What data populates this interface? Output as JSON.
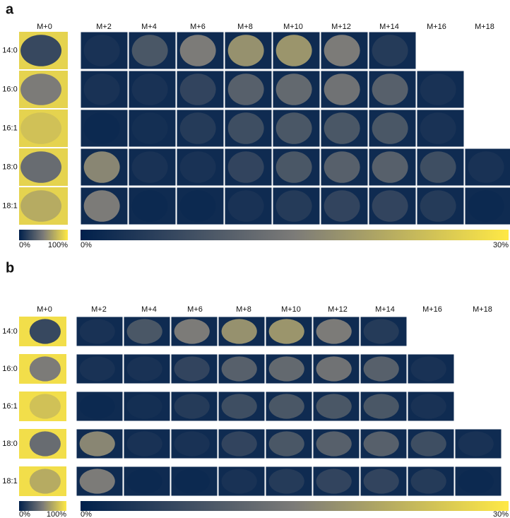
{
  "panels": [
    {
      "label": "a",
      "columns": [
        "M+0",
        "M+2",
        "M+4",
        "M+6",
        "M+8",
        "M+10",
        "M+12",
        "M+14",
        "M+16",
        "M+18"
      ],
      "rows": [
        "14:0",
        "16:0",
        "16:1",
        "18:0",
        "18:1"
      ],
      "colorbars": [
        {
          "min": "0%",
          "max": "100%"
        },
        {
          "min": "0%",
          "max": "30%"
        }
      ]
    },
    {
      "label": "b",
      "columns": [
        "M+0",
        "M+2",
        "M+4",
        "M+6",
        "M+8",
        "M+10",
        "M+12",
        "M+14",
        "M+16",
        "M+18"
      ],
      "rows": [
        "14:0",
        "16:0",
        "16:1",
        "18:0",
        "18:1"
      ],
      "colorbars": [
        {
          "min": "0%",
          "max": "100%"
        },
        {
          "min": "0%",
          "max": "30%"
        }
      ]
    }
  ]
}
